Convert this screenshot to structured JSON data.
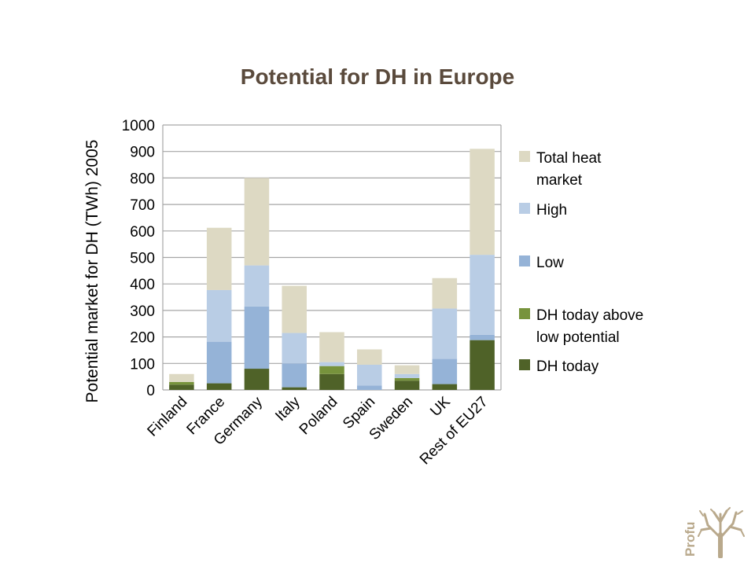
{
  "slide": {
    "logo_text": "Profu",
    "colors": {
      "title": "#5a4a3c",
      "logo": "#b9a98c"
    }
  },
  "chart_data": {
    "type": "bar",
    "stacked": true,
    "title": "Potential for DH in Europe",
    "xlabel": "",
    "ylabel": "Potential market for DH (TWh) 2005",
    "ylim": [
      0,
      1000
    ],
    "yticks": [
      0,
      100,
      200,
      300,
      400,
      500,
      600,
      700,
      800,
      900,
      1000
    ],
    "grid": true,
    "legend_position": "right",
    "categories": [
      "Finland",
      "France",
      "Germany",
      "Italy",
      "Poland",
      "Spain",
      "Sweden",
      "UK",
      "Rest of EU27"
    ],
    "series": [
      {
        "name": "DH today",
        "color": "#4f6228",
        "values": [
          20,
          25,
          80,
          10,
          60,
          0,
          35,
          22,
          188
        ]
      },
      {
        "name": "DH today above low potential",
        "color": "#77933c",
        "values": [
          10,
          0,
          0,
          0,
          30,
          0,
          10,
          0,
          0
        ]
      },
      {
        "name": "Low",
        "color": "#95b3d7",
        "values": [
          0,
          157,
          235,
          90,
          0,
          17,
          0,
          95,
          20
        ]
      },
      {
        "name": "High",
        "color": "#b9cde5",
        "values": [
          0,
          195,
          155,
          115,
          15,
          78,
          15,
          190,
          302
        ]
      },
      {
        "name": "Total heat market",
        "color": "#ddd9c3",
        "values": [
          30,
          235,
          330,
          178,
          113,
          58,
          33,
          115,
          400
        ]
      }
    ],
    "legend_order": [
      {
        "lines": [
          "Total heat",
          "market"
        ],
        "series": 4
      },
      {
        "lines": [
          "High"
        ],
        "series": 3
      },
      {
        "lines": [
          "Low"
        ],
        "series": 2
      },
      {
        "lines": [
          "DH today above",
          "low potential"
        ],
        "series": 1
      },
      {
        "lines": [
          "DH today"
        ],
        "series": 0
      }
    ]
  }
}
